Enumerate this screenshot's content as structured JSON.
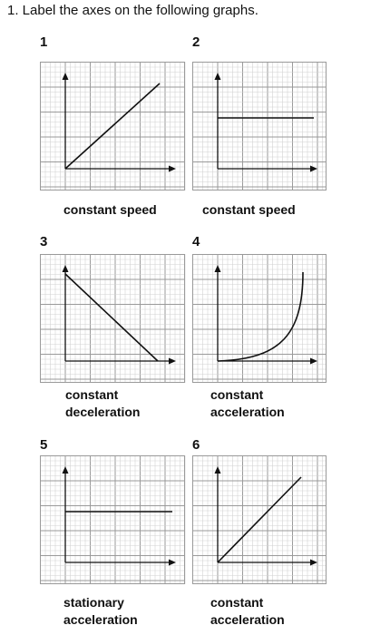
{
  "question": "1. Label the axes on the following graphs.",
  "graphs": [
    {
      "number": "1",
      "caption": [
        "constant speed"
      ],
      "shape": "rising-line"
    },
    {
      "number": "2",
      "caption": [
        "constant speed"
      ],
      "shape": "horizontal-line"
    },
    {
      "number": "3",
      "caption": [
        "constant",
        "deceleration"
      ],
      "shape": "falling-line"
    },
    {
      "number": "4",
      "caption": [
        "constant",
        "acceleration"
      ],
      "shape": "upward-curve"
    },
    {
      "number": "5",
      "caption": [
        "stationary",
        "acceleration"
      ],
      "shape": "horizontal-line"
    },
    {
      "number": "6",
      "caption": [
        "constant",
        "acceleration"
      ],
      "shape": "rising-line"
    }
  ],
  "colors": {
    "grid_minor": "#d2d2d2",
    "grid_major": "#9a9a9a",
    "line": "#111111"
  }
}
